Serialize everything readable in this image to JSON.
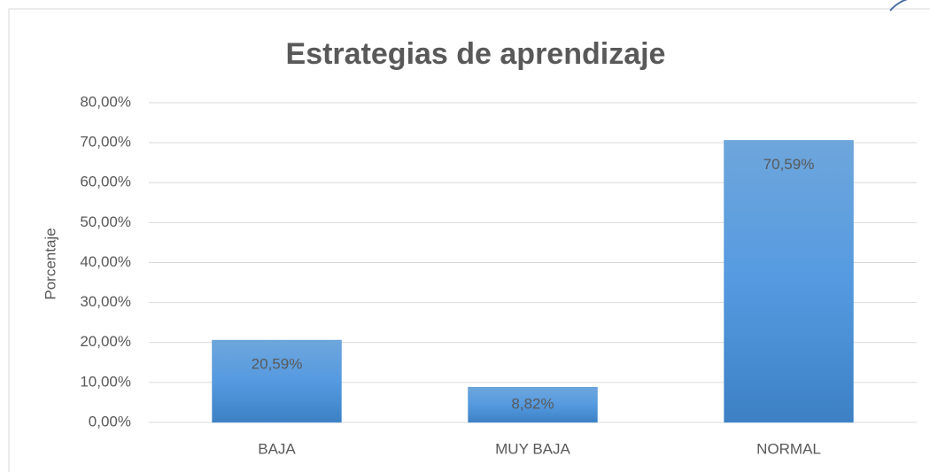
{
  "chart_data": {
    "type": "bar",
    "title": "Estrategias de aprendizaje",
    "y_label": "Porcentaje",
    "categories": [
      "BAJA",
      "MUY BAJA",
      "NORMAL"
    ],
    "values": [
      20.59,
      8.82,
      70.59
    ],
    "value_labels": [
      "20,59%",
      "8,82%",
      "70,59%"
    ],
    "color": "#5b9bd5",
    "ylim": [
      0,
      80
    ],
    "yticks": [
      {
        "value": 0,
        "label": "0,00%"
      },
      {
        "value": 10,
        "label": "10,00%"
      },
      {
        "value": 20,
        "label": "20,00%"
      },
      {
        "value": 30,
        "label": "30,00%"
      },
      {
        "value": 40,
        "label": "40,00%"
      },
      {
        "value": 50,
        "label": "50,00%"
      },
      {
        "value": 60,
        "label": "60,00%"
      },
      {
        "value": 70,
        "label": "70,00%"
      },
      {
        "value": 80,
        "label": "80,00%"
      }
    ],
    "grid": true
  }
}
